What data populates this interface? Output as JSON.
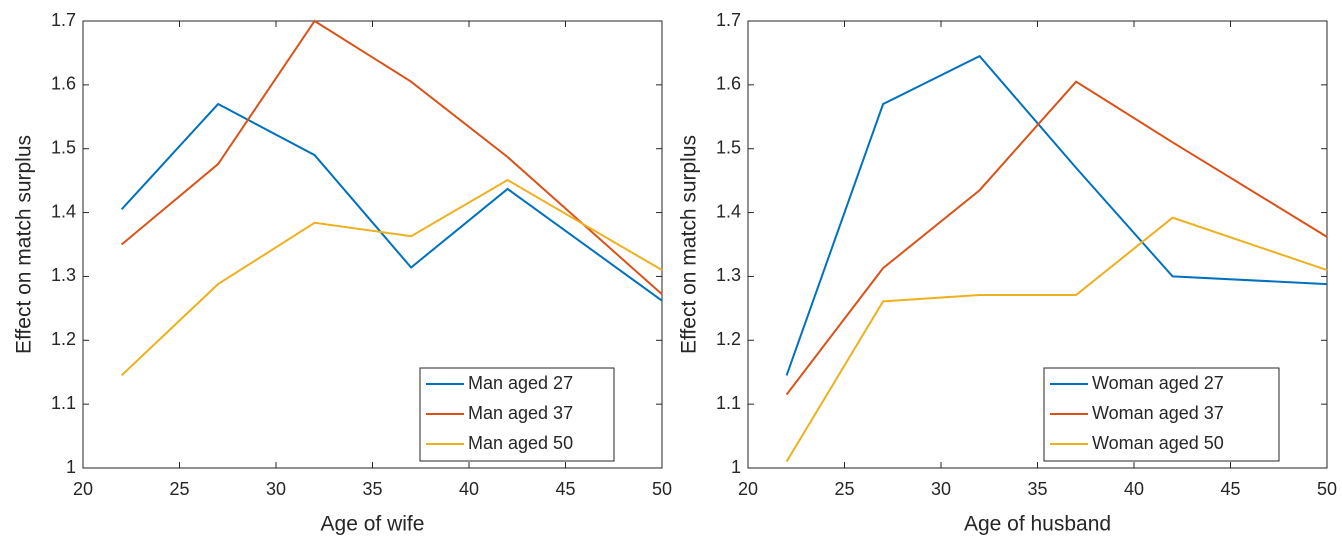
{
  "chart_data": [
    {
      "type": "line",
      "x_label": "Age of wife",
      "y_label": "Effect on match surplus",
      "x": [
        22,
        27,
        32,
        37,
        42,
        50
      ],
      "series": [
        {
          "name": "Man aged 27",
          "color": "#0072bd",
          "values": [
            1.405,
            1.57,
            1.49,
            1.314,
            1.437,
            1.262
          ]
        },
        {
          "name": "Man aged 37",
          "color": "#d95319",
          "values": [
            1.35,
            1.476,
            1.7,
            1.605,
            1.487,
            1.272
          ]
        },
        {
          "name": "Man aged 50",
          "color": "#edb120",
          "values": [
            1.145,
            1.288,
            1.384,
            1.363,
            1.451,
            1.31
          ]
        }
      ],
      "xlim": [
        20,
        50
      ],
      "xticks": [
        20,
        25,
        30,
        35,
        40,
        45,
        50
      ],
      "ylim": [
        1,
        1.7
      ],
      "yticks": [
        1,
        1.1,
        1.2,
        1.3,
        1.4,
        1.5,
        1.6,
        1.7
      ],
      "legend": "lower right"
    },
    {
      "type": "line",
      "x_label": "Age of husband",
      "y_label": "Effect on match surplus",
      "x": [
        22,
        27,
        32,
        37,
        42,
        50
      ],
      "series": [
        {
          "name": "Woman aged 27",
          "color": "#0072bd",
          "values": [
            1.145,
            1.57,
            1.645,
            1.47,
            1.3,
            1.288
          ]
        },
        {
          "name": "Woman aged 37",
          "color": "#d95319",
          "values": [
            1.115,
            1.313,
            1.435,
            1.605,
            1.51,
            1.362
          ]
        },
        {
          "name": "Woman aged 50",
          "color": "#edb120",
          "values": [
            1.01,
            1.261,
            1.271,
            1.271,
            1.392,
            1.31
          ]
        }
      ],
      "xlim": [
        20,
        50
      ],
      "xticks": [
        20,
        25,
        30,
        35,
        40,
        45,
        50
      ],
      "ylim": [
        1,
        1.7
      ],
      "yticks": [
        1,
        1.1,
        1.2,
        1.3,
        1.4,
        1.5,
        1.6,
        1.7
      ],
      "legend": "lower right"
    }
  ]
}
